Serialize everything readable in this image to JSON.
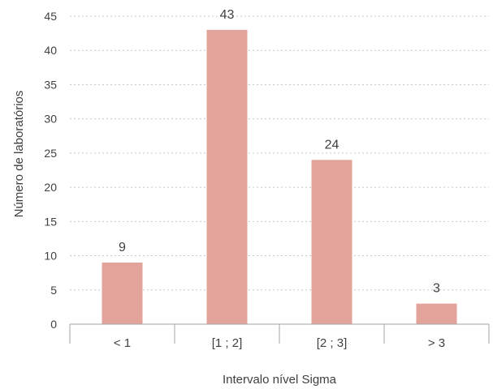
{
  "chart_data": {
    "type": "bar",
    "categories": [
      "< 1",
      "[1 ; 2]",
      "[2 ; 3]",
      "> 3"
    ],
    "values": [
      9,
      43,
      24,
      3
    ],
    "data_labels": [
      "9",
      "43",
      "24",
      "3"
    ],
    "title": "",
    "xlabel": "Intervalo nível Sigma",
    "ylabel": "Número de laboratórios",
    "ylim": [
      0,
      45
    ],
    "yticks": [
      0,
      5,
      10,
      15,
      20,
      25,
      30,
      35,
      40,
      45
    ],
    "grid": true,
    "legend": "none",
    "bar_color": "#e3a39a",
    "grid_color": "#c8c8c8",
    "axis_color": "#a6a6a6",
    "text_color": "#404040"
  }
}
